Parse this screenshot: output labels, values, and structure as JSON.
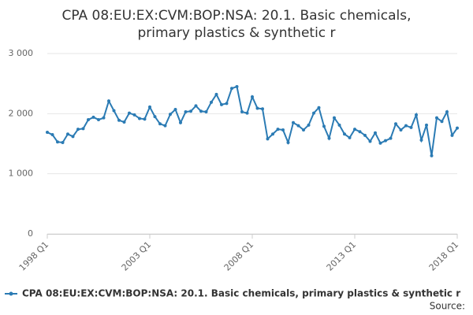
{
  "chart_data": {
    "type": "line",
    "title": [
      "CPA 08:EU:EX:CVM:BOP:NSA: 20.1. Basic chemicals,",
      "primary plastics & synthetic r"
    ],
    "source_label": "Source:",
    "categories": [
      "1998 Q1",
      null,
      null,
      null,
      null,
      null,
      null,
      null,
      null,
      null,
      null,
      null,
      null,
      null,
      null,
      null,
      null,
      null,
      null,
      null,
      "2003 Q1",
      null,
      null,
      null,
      null,
      null,
      null,
      null,
      null,
      null,
      null,
      null,
      null,
      null,
      null,
      null,
      null,
      null,
      null,
      null,
      "2008 Q1",
      null,
      null,
      null,
      null,
      null,
      null,
      null,
      null,
      null,
      null,
      null,
      null,
      null,
      null,
      null,
      null,
      null,
      null,
      null,
      "2013 Q1",
      null,
      null,
      null,
      null,
      null,
      null,
      null,
      null,
      null,
      null,
      null,
      null,
      null,
      null,
      null,
      null,
      null,
      null,
      null,
      "2018 Q1"
    ],
    "series": [
      {
        "name": "CPA 08:EU:EX:CVM:BOP:NSA: 20.1. Basic chemicals, primary plastics & synthetic r",
        "color": "#2b7bb4",
        "values": [
          1690,
          1650,
          1530,
          1520,
          1660,
          1620,
          1740,
          1750,
          1900,
          1940,
          1900,
          1930,
          2210,
          2050,
          1890,
          1860,
          2010,
          1980,
          1920,
          1910,
          2110,
          1950,
          1830,
          1800,
          1990,
          2070,
          1850,
          2030,
          2040,
          2130,
          2040,
          2030,
          2190,
          2320,
          2150,
          2170,
          2420,
          2450,
          2030,
          2010,
          2280,
          2090,
          2080,
          1580,
          1660,
          1740,
          1730,
          1520,
          1850,
          1800,
          1730,
          1810,
          2010,
          2100,
          1790,
          1590,
          1930,
          1810,
          1660,
          1600,
          1740,
          1700,
          1640,
          1540,
          1680,
          1510,
          1550,
          1590,
          1830,
          1730,
          1800,
          1770,
          1980,
          1560,
          1810,
          1300,
          1930,
          1870,
          2030,
          1640,
          1760
        ]
      }
    ],
    "ylim": [
      0,
      3000
    ],
    "yticks": [
      {
        "value": 0,
        "label": "0"
      },
      {
        "value": 1000,
        "label": "1 000"
      },
      {
        "value": 2000,
        "label": "2 000"
      },
      {
        "value": 3000,
        "label": "3 000"
      }
    ],
    "grid": true
  }
}
